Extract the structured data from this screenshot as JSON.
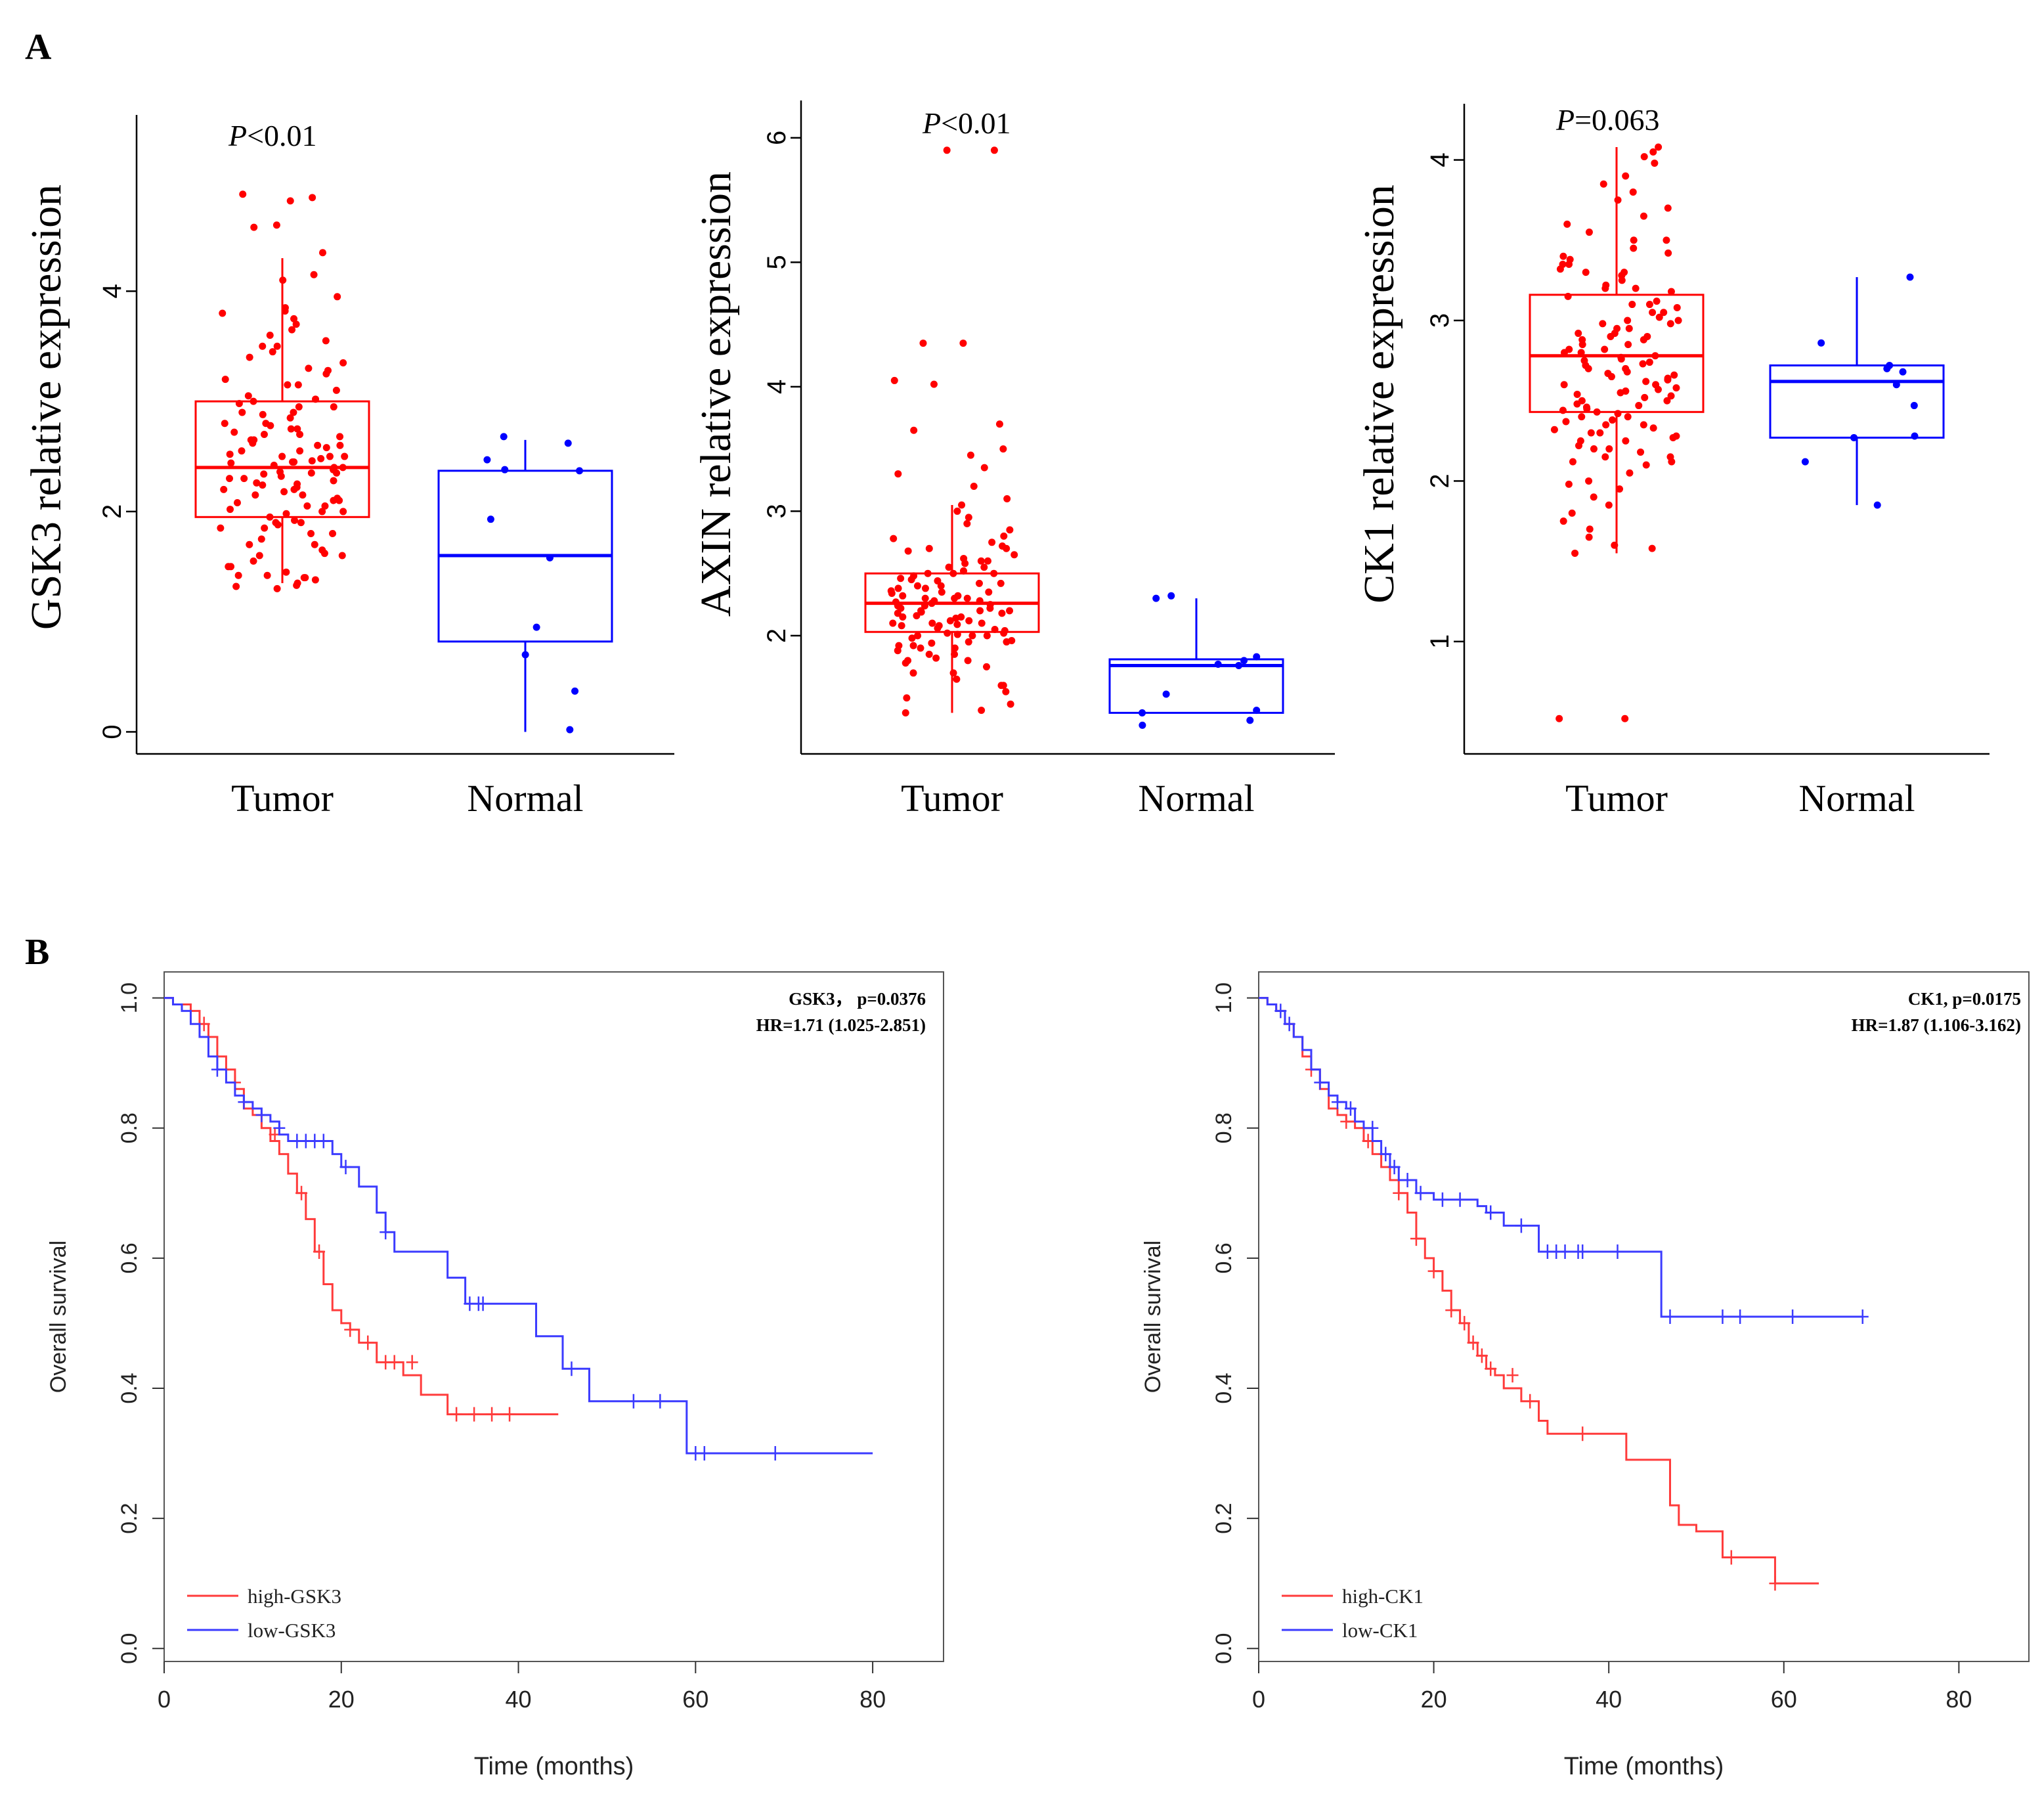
{
  "figure": {
    "panel_a_label": "A",
    "panel_b_label": "B"
  },
  "colors": {
    "tumor": "#ff0000",
    "normal": "#0000ff",
    "axis": "#000000",
    "high": "#ff3b3b",
    "low": "#3b3bff"
  },
  "chart_data": [
    {
      "id": "boxplot-gsk3",
      "type": "box",
      "ylabel": "GSK3  relative expression",
      "pvalue_label": "P",
      "pvalue_text": "<0.01",
      "categories": [
        "Tumor",
        "Normal"
      ],
      "ylim": [
        -0.2,
        5.6
      ],
      "yticks": [
        0,
        2,
        4
      ],
      "boxes": [
        {
          "group": "Tumor",
          "min": 1.35,
          "q1": 1.95,
          "median": 2.4,
          "q3": 3.0,
          "max": 4.3
        },
        {
          "group": "Normal",
          "min": 0.0,
          "q1": 0.82,
          "median": 1.6,
          "q3": 2.37,
          "max": 2.65
        }
      ],
      "points": {
        "Tumor": [
          4.88,
          4.85,
          4.82,
          4.6,
          4.58,
          4.35,
          4.15,
          4.1,
          3.85,
          3.82,
          3.8,
          3.75,
          3.7,
          3.6,
          3.55,
          3.5,
          3.45,
          3.4,
          3.35,
          3.3,
          3.28,
          3.25,
          3.2,
          3.15,
          3.1,
          3.05,
          3.02,
          2.98,
          2.95,
          2.9,
          2.88,
          2.85,
          2.8,
          2.78,
          2.75,
          2.72,
          2.7,
          2.68,
          2.65,
          2.62,
          2.6,
          2.58,
          2.55,
          2.52,
          2.5,
          2.48,
          2.46,
          2.44,
          2.42,
          2.4,
          2.38,
          2.36,
          2.34,
          2.32,
          2.3,
          2.28,
          2.26,
          2.24,
          2.22,
          2.2,
          2.18,
          2.15,
          2.12,
          2.1,
          2.08,
          2.05,
          2.02,
          2.0,
          1.98,
          1.95,
          1.92,
          1.9,
          1.88,
          1.85,
          1.8,
          1.75,
          1.7,
          1.65,
          1.6,
          1.55,
          1.5,
          1.45,
          1.42,
          1.4,
          1.38,
          1.35,
          1.33,
          1.32,
          1.3,
          2.45,
          2.55,
          2.65,
          2.35,
          2.25,
          2.15,
          2.05,
          1.85,
          1.62,
          3.5,
          3.0,
          2.9,
          2.8,
          2.7,
          2.5,
          2.3,
          2.1,
          1.9,
          1.7,
          1.5,
          1.4,
          3.95,
          3.65,
          3.15,
          2.95,
          2.75,
          2.6,
          2.4,
          2.2,
          2.0,
          1.8,
          1.6,
          1.42,
          2.5,
          2.45,
          2.35
        ],
        "Normal": [
          2.68,
          2.62,
          2.47,
          2.38,
          2.37,
          1.93,
          1.58,
          0.95,
          0.7,
          0.37,
          0.02
        ]
      }
    },
    {
      "id": "boxplot-axin",
      "type": "box",
      "ylabel": "AXIN  relative expression",
      "pvalue_label": "P",
      "pvalue_text": "<0.01",
      "categories": [
        "Tumor",
        "Normal"
      ],
      "ylim": [
        1.05,
        6.3
      ],
      "yticks": [
        2,
        3,
        4,
        5,
        6
      ],
      "boxes": [
        {
          "group": "Tumor",
          "min": 1.38,
          "q1": 2.03,
          "median": 2.26,
          "q3": 2.5,
          "max": 3.05
        },
        {
          "group": "Normal",
          "min": 1.38,
          "q1": 1.38,
          "median": 1.76,
          "q3": 1.81,
          "max": 2.3
        }
      ],
      "points": {
        "Tumor": [
          5.9,
          5.9,
          4.35,
          4.35,
          4.05,
          4.02,
          3.7,
          3.65,
          3.5,
          3.45,
          3.35,
          3.3,
          3.2,
          3.1,
          3.05,
          3.0,
          2.95,
          2.9,
          2.85,
          2.8,
          2.78,
          2.75,
          2.72,
          2.7,
          2.68,
          2.65,
          2.62,
          2.6,
          2.58,
          2.55,
          2.52,
          2.5,
          2.48,
          2.46,
          2.44,
          2.42,
          2.4,
          2.38,
          2.36,
          2.34,
          2.32,
          2.3,
          2.28,
          2.26,
          2.24,
          2.22,
          2.2,
          2.18,
          2.16,
          2.14,
          2.12,
          2.1,
          2.08,
          2.06,
          2.04,
          2.02,
          2.0,
          1.98,
          1.96,
          1.94,
          1.92,
          1.9,
          1.88,
          1.85,
          1.82,
          1.8,
          1.75,
          1.7,
          1.65,
          1.6,
          1.55,
          1.5,
          1.45,
          1.4,
          1.38,
          2.45,
          2.35,
          2.25,
          2.15,
          2.05,
          1.95,
          1.85,
          2.55,
          2.4,
          2.3,
          2.2,
          2.1,
          2.0,
          1.9,
          2.6,
          2.5,
          2.3,
          2.2,
          2.1,
          2.0,
          1.8,
          2.7,
          2.5,
          2.35,
          2.28,
          2.22,
          2.15,
          2.08,
          1.95,
          1.7,
          1.6,
          2.42,
          2.32,
          2.24,
          2.18,
          2.12,
          2.02,
          1.92,
          1.78,
          2.38,
          2.27,
          2.19,
          2.09,
          2.01
        ],
        "Normal": [
          2.32,
          2.3,
          1.83,
          1.8,
          1.77,
          1.76,
          1.53,
          1.4,
          1.38,
          1.32,
          1.28
        ]
      }
    },
    {
      "id": "boxplot-ck1",
      "type": "box",
      "ylabel": "CK1  relative expression",
      "pvalue_label": "P",
      "pvalue_text": "=0.063",
      "categories": [
        "Tumor",
        "Normal"
      ],
      "ylim": [
        0.3,
        4.35
      ],
      "yticks": [
        1,
        2,
        3,
        4
      ],
      "boxes": [
        {
          "group": "Tumor",
          "min": 1.55,
          "q1": 2.43,
          "median": 2.78,
          "q3": 3.16,
          "max": 4.08
        },
        {
          "group": "Normal",
          "min": 1.85,
          "q1": 2.27,
          "median": 2.62,
          "q3": 2.72,
          "max": 3.27
        }
      ],
      "points": {
        "Tumor": [
          4.08,
          4.05,
          4.02,
          3.98,
          3.9,
          3.85,
          3.8,
          3.75,
          3.7,
          3.65,
          3.6,
          3.55,
          3.5,
          3.45,
          3.42,
          3.4,
          3.38,
          3.35,
          3.32,
          3.3,
          3.28,
          3.25,
          3.22,
          3.2,
          3.18,
          3.15,
          3.12,
          3.1,
          3.08,
          3.05,
          3.02,
          3.0,
          2.98,
          2.95,
          2.92,
          2.9,
          2.88,
          2.85,
          2.82,
          2.8,
          2.78,
          2.76,
          2.74,
          2.72,
          2.7,
          2.68,
          2.66,
          2.64,
          2.62,
          2.6,
          2.58,
          2.56,
          2.54,
          2.52,
          2.5,
          2.48,
          2.46,
          2.44,
          2.42,
          2.4,
          2.38,
          2.35,
          2.32,
          2.3,
          2.28,
          2.25,
          2.22,
          2.2,
          2.18,
          2.15,
          2.12,
          2.1,
          2.05,
          2.0,
          1.95,
          1.9,
          1.85,
          1.8,
          1.75,
          1.7,
          1.65,
          1.6,
          1.58,
          1.55,
          0.52,
          0.52,
          3.1,
          3.0,
          2.9,
          2.8,
          2.7,
          2.6,
          2.5,
          2.4,
          2.3,
          2.2,
          3.2,
          3.05,
          2.95,
          2.85,
          2.75,
          2.65,
          2.55,
          2.45,
          2.35,
          2.25,
          3.3,
          2.98,
          2.88,
          2.77,
          2.67,
          2.57,
          2.47,
          2.37,
          2.27,
          2.15,
          3.5,
          3.35,
          2.92,
          2.82,
          2.73,
          2.63,
          2.53,
          2.43,
          2.33,
          2.12,
          1.98
        ],
        "Normal": [
          3.27,
          2.86,
          2.72,
          2.7,
          2.68,
          2.6,
          2.47,
          2.28,
          2.27,
          2.12,
          1.85
        ]
      }
    },
    {
      "id": "km-gsk3",
      "type": "step",
      "xlabel": "Time (months)",
      "ylabel": "Overall survival",
      "annotation_line1": "GSK3， p=0.0376",
      "annotation_line2": "HR=1.71 (1.025-2.851)",
      "xlim": [
        0,
        88
      ],
      "ylim": [
        -0.02,
        1.04
      ],
      "xticks": [
        0,
        20,
        40,
        60,
        80
      ],
      "yticks": [
        0.0,
        0.2,
        0.4,
        0.6,
        0.8,
        1.0
      ],
      "legend": [
        "high-GSK3",
        "low-GSK3"
      ],
      "legend_position": "bottom-left",
      "series": [
        {
          "name": "high-GSK3",
          "x": [
            0,
            1,
            3,
            4,
            5,
            6,
            7,
            8,
            9,
            10,
            11,
            12,
            13,
            14,
            15,
            16,
            17,
            18,
            19,
            20,
            21,
            22,
            24,
            27,
            29,
            32,
            33,
            36,
            39,
            44.5
          ],
          "y": [
            1.0,
            0.99,
            0.98,
            0.96,
            0.94,
            0.91,
            0.89,
            0.86,
            0.83,
            0.82,
            0.8,
            0.78,
            0.76,
            0.73,
            0.7,
            0.66,
            0.61,
            0.56,
            0.52,
            0.5,
            0.49,
            0.47,
            0.44,
            0.42,
            0.39,
            0.36,
            0.36,
            0.36,
            0.36,
            0.36
          ],
          "censors_x": [
            4.5,
            8,
            12.5,
            15.5,
            17.5,
            21,
            23,
            25,
            26,
            28,
            33,
            35,
            37,
            39
          ],
          "censors_y": [
            0.96,
            0.87,
            0.79,
            0.7,
            0.61,
            0.49,
            0.47,
            0.44,
            0.44,
            0.44,
            0.36,
            0.36,
            0.36,
            0.36
          ]
        },
        {
          "name": "low-GSK3",
          "x": [
            0,
            1,
            2,
            3,
            4,
            5,
            6,
            7,
            8,
            9,
            10,
            11,
            12,
            13,
            14,
            17,
            19,
            20,
            22,
            24,
            25,
            26,
            30,
            32,
            34,
            42,
            45,
            48,
            53,
            59,
            80
          ],
          "y": [
            1.0,
            0.99,
            0.98,
            0.96,
            0.94,
            0.91,
            0.89,
            0.87,
            0.85,
            0.84,
            0.83,
            0.82,
            0.81,
            0.79,
            0.78,
            0.78,
            0.76,
            0.74,
            0.71,
            0.67,
            0.64,
            0.61,
            0.61,
            0.57,
            0.53,
            0.48,
            0.43,
            0.38,
            0.38,
            0.3,
            0.3
          ],
          "censors_x": [
            6,
            9,
            11,
            13,
            15,
            16,
            17,
            18,
            20.5,
            25,
            34.5,
            35.5,
            36,
            46,
            53,
            56,
            60,
            61,
            69
          ],
          "censors_y": [
            0.89,
            0.84,
            0.82,
            0.8,
            0.78,
            0.78,
            0.78,
            0.78,
            0.74,
            0.64,
            0.53,
            0.53,
            0.53,
            0.43,
            0.38,
            0.38,
            0.3,
            0.3,
            0.3
          ]
        }
      ]
    },
    {
      "id": "km-ck1",
      "type": "step",
      "xlabel": "Time (months)",
      "ylabel": "Overall survival",
      "annotation_line1": "CK1, p=0.0175",
      "annotation_line2": "HR=1.87 (1.106-3.162)",
      "xlim": [
        0,
        88
      ],
      "ylim": [
        -0.02,
        1.04
      ],
      "xticks": [
        0,
        20,
        40,
        60,
        80
      ],
      "yticks": [
        0.0,
        0.2,
        0.4,
        0.6,
        0.8,
        1.0
      ],
      "legend": [
        "high-CK1",
        "low-CK1"
      ],
      "legend_position": "bottom-left",
      "series": [
        {
          "name": "high-CK1",
          "x": [
            0,
            1,
            2,
            3,
            4,
            5,
            6,
            7,
            8,
            9,
            10,
            11,
            12,
            13,
            14,
            15,
            16,
            17,
            18,
            19,
            20,
            21,
            22,
            23,
            24,
            25,
            26,
            27,
            28,
            30,
            32,
            33,
            37,
            42,
            47,
            48,
            50,
            53,
            59,
            64
          ],
          "y": [
            1.0,
            0.99,
            0.98,
            0.96,
            0.94,
            0.91,
            0.89,
            0.86,
            0.83,
            0.82,
            0.81,
            0.8,
            0.78,
            0.76,
            0.74,
            0.72,
            0.7,
            0.67,
            0.63,
            0.6,
            0.58,
            0.55,
            0.52,
            0.5,
            0.47,
            0.45,
            0.43,
            0.42,
            0.4,
            0.38,
            0.35,
            0.33,
            0.33,
            0.29,
            0.22,
            0.19,
            0.18,
            0.14,
            0.1,
            0.1
          ],
          "censors_x": [
            6,
            10,
            12.5,
            16,
            18,
            20,
            22,
            23.5,
            24.5,
            25.5,
            26.5,
            29,
            31,
            37,
            54,
            59
          ],
          "censors_y": [
            0.89,
            0.81,
            0.78,
            0.7,
            0.63,
            0.58,
            0.52,
            0.5,
            0.47,
            0.45,
            0.43,
            0.42,
            0.38,
            0.33,
            0.14,
            0.1
          ]
        },
        {
          "name": "low-CK1",
          "x": [
            0,
            1,
            2,
            3,
            4,
            5,
            6,
            7,
            8,
            9,
            10,
            11,
            12,
            13,
            14,
            15,
            16,
            18,
            20,
            25,
            26,
            28,
            31,
            32,
            38,
            45,
            46,
            69
          ],
          "y": [
            1.0,
            0.99,
            0.98,
            0.96,
            0.94,
            0.92,
            0.89,
            0.87,
            0.85,
            0.84,
            0.83,
            0.81,
            0.8,
            0.78,
            0.76,
            0.74,
            0.72,
            0.7,
            0.69,
            0.68,
            0.67,
            0.65,
            0.65,
            0.61,
            0.61,
            0.61,
            0.51,
            0.51
          ],
          "censors_x": [
            2.5,
            3.5,
            7,
            9,
            10.5,
            13,
            14.5,
            15.5,
            17,
            18.5,
            21,
            23,
            26.5,
            30,
            33,
            34,
            35,
            36.5,
            37,
            41,
            47,
            53,
            55,
            61,
            69
          ],
          "censors_y": [
            0.98,
            0.96,
            0.87,
            0.84,
            0.83,
            0.8,
            0.76,
            0.74,
            0.72,
            0.7,
            0.69,
            0.69,
            0.67,
            0.65,
            0.61,
            0.61,
            0.61,
            0.61,
            0.61,
            0.61,
            0.51,
            0.51,
            0.51,
            0.51,
            0.51
          ]
        }
      ]
    }
  ]
}
